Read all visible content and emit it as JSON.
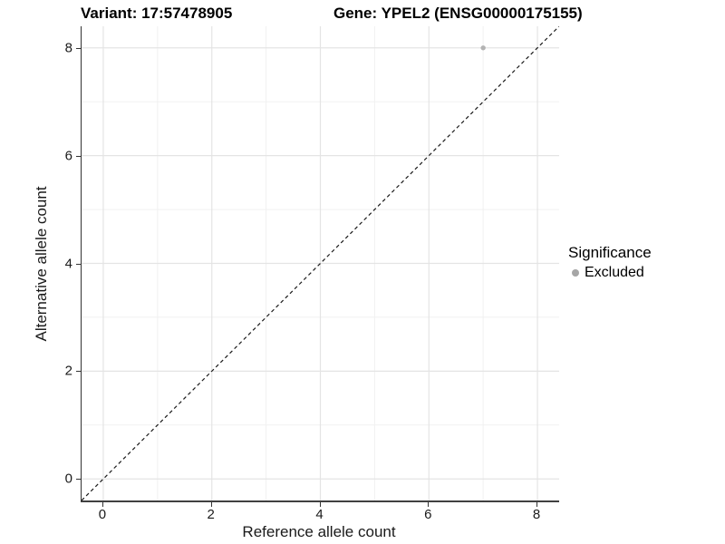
{
  "header": {
    "variant_title": "Variant: 17:57478905",
    "gene_title": "Gene: YPEL2 (ENSG00000175155)"
  },
  "chart_data": {
    "type": "scatter",
    "xlabel": "Reference allele count",
    "ylabel": "Alternative allele count",
    "xlim": [
      -0.4,
      8.4
    ],
    "ylim": [
      -0.4,
      8.4
    ],
    "xticks": [
      0,
      2,
      4,
      6,
      8
    ],
    "yticks": [
      0,
      2,
      4,
      6,
      8
    ],
    "minor_xticks": [
      1,
      3,
      5,
      7
    ],
    "minor_yticks": [
      1,
      3,
      5,
      7
    ],
    "grid": "major+minor",
    "points": [
      {
        "x": 7,
        "y": 8,
        "significance": "Excluded"
      }
    ],
    "identity_line": {
      "type": "abline",
      "slope": 1,
      "intercept": 0,
      "style": "dashed"
    },
    "legend": {
      "title": "Significance",
      "position": "right",
      "items": [
        {
          "label": "Excluded",
          "color": "#a6a6a6",
          "marker": "circle"
        }
      ]
    }
  },
  "colors": {
    "background": "#ffffff",
    "grid_major": "#e4e4e4",
    "grid_minor": "#f1f1f1",
    "axis_line": "#333333",
    "tick_mark": "#333333",
    "axis_text": "#1a1a1a",
    "title_text": "#000000",
    "identity_line": "#1a1a1a",
    "point": "#b3b3b3"
  }
}
